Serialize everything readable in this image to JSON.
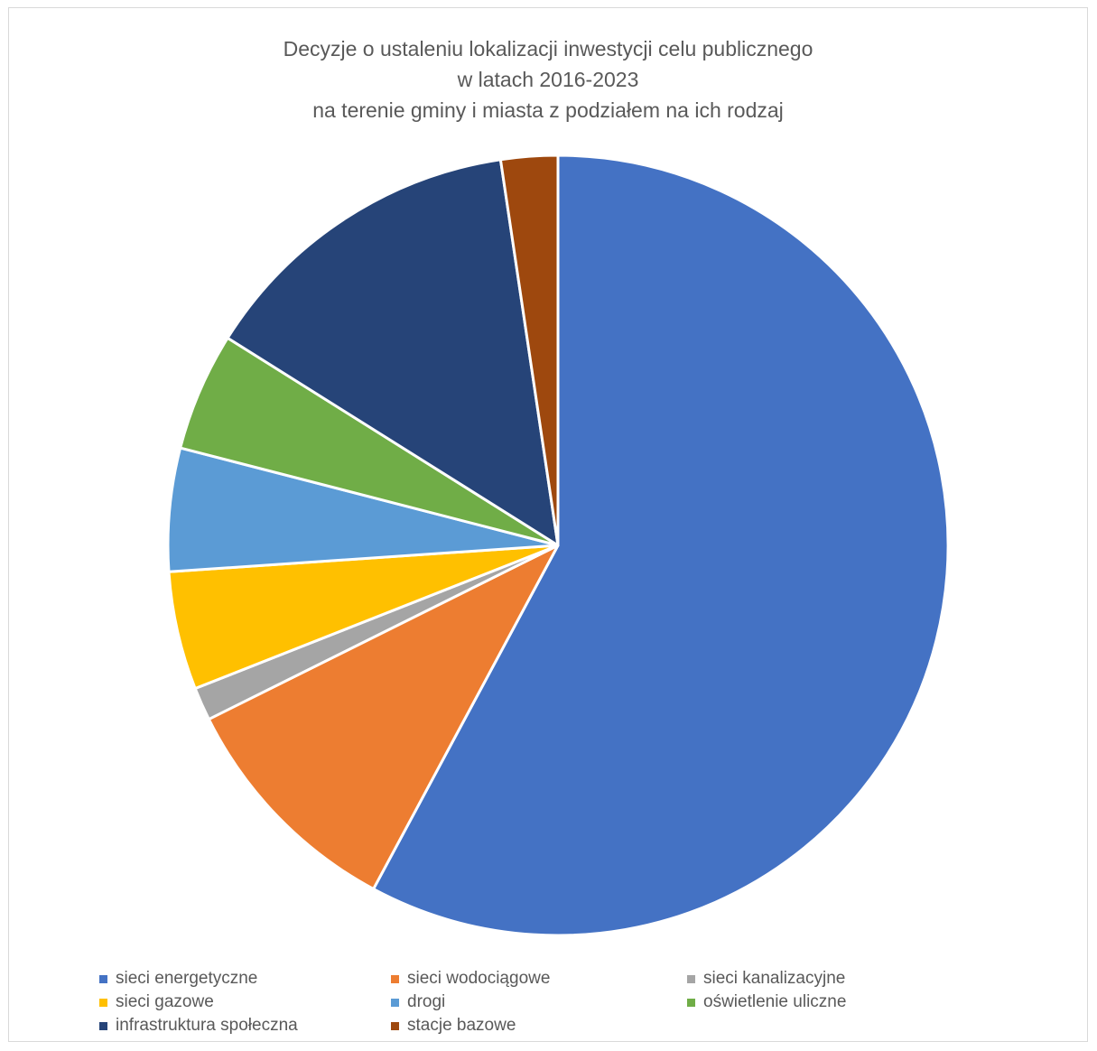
{
  "chart_data": {
    "type": "pie",
    "title_lines": [
      "Decyzje o ustaleniu lokalizacji inwestycji celu publicznego",
      "w latach 2016-2023",
      "na terenie gminy i miasta z podziałem na ich rodzaj"
    ],
    "legend_placement": "bottom",
    "start_angle_deg": 0,
    "direction": "clockwise",
    "slices": [
      {
        "label": "sieci energetyczne",
        "value": 59,
        "color": "#4472C4"
      },
      {
        "label": "sieci wodociągowe",
        "value": 10,
        "color": "#ED7D31"
      },
      {
        "label": "sieci kanalizacyjne",
        "value": 1.4,
        "color": "#A5A5A5"
      },
      {
        "label": "sieci gazowe",
        "value": 5,
        "color": "#FFC000"
      },
      {
        "label": "drogi",
        "value": 5.2,
        "color": "#5B9BD5"
      },
      {
        "label": "oświetlenie uliczne",
        "value": 5,
        "color": "#70AD47"
      },
      {
        "label": "infrastruktura społeczna",
        "value": 14,
        "color": "#264478"
      },
      {
        "label": "stacje bazowe",
        "value": 2.4,
        "color": "#9E480E"
      }
    ]
  }
}
